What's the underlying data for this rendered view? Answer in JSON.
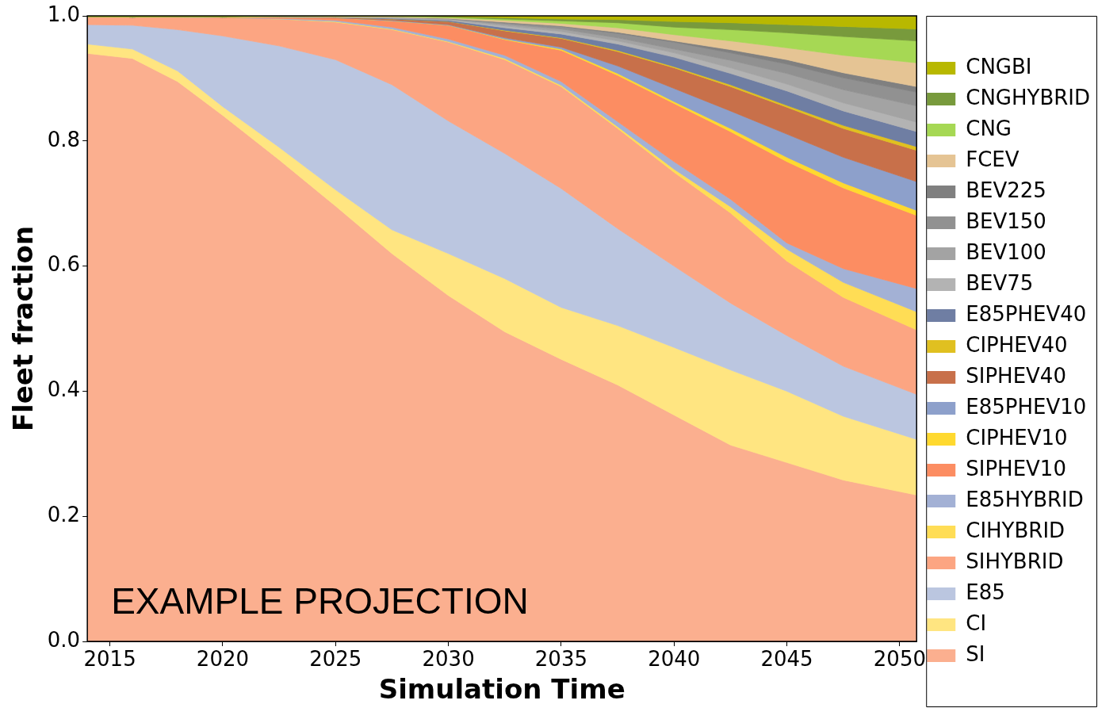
{
  "chart_data": {
    "type": "area",
    "stacked": true,
    "xlabel": "Simulation Time",
    "ylabel": "Fleet fraction",
    "legend": "right",
    "annotations": [
      "EXAMPLE PROJECTION"
    ],
    "xlim": [
      2014,
      2050.75
    ],
    "xticks": [
      2015,
      2020,
      2025,
      2030,
      2035,
      2040,
      2045,
      2050
    ],
    "ylim": [
      0,
      1
    ],
    "yticks": [
      {
        "value": 0,
        "label": "0.0"
      },
      {
        "value": 0.2,
        "label": "0.2"
      },
      {
        "value": 0.4,
        "label": "0.4"
      },
      {
        "value": 0.6,
        "label": "0.6"
      },
      {
        "value": 0.8,
        "label": "0.8"
      },
      {
        "value": 1,
        "label": "1.0"
      }
    ],
    "x": [
      2014,
      2016,
      2018,
      2020,
      2022.5,
      2025,
      2027.5,
      2030,
      2032.5,
      2035,
      2037.5,
      2040,
      2042.5,
      2045,
      2047.5,
      2050.75
    ],
    "series": [
      {
        "name": "SI",
        "color": "#fbaf8f",
        "values": [
          0.94,
          0.932,
          0.895,
          0.841,
          0.77,
          0.696,
          0.62,
          0.553,
          0.495,
          0.451,
          0.41,
          0.362,
          0.314,
          0.286,
          0.258,
          0.234
        ]
      },
      {
        "name": "CI",
        "color": "#ffe581",
        "values": [
          0.015,
          0.015,
          0.017,
          0.014,
          0.02,
          0.026,
          0.038,
          0.067,
          0.085,
          0.083,
          0.095,
          0.108,
          0.12,
          0.114,
          0.102,
          0.089
        ]
      },
      {
        "name": "E85",
        "color": "#bbc6e0",
        "values": [
          0.031,
          0.038,
          0.066,
          0.113,
          0.162,
          0.208,
          0.232,
          0.212,
          0.2,
          0.19,
          0.155,
          0.13,
          0.107,
          0.089,
          0.08,
          0.072
        ]
      },
      {
        "name": "SIHYBRID",
        "color": "#fca582",
        "values": [
          0.013,
          0.013,
          0.02,
          0.029,
          0.043,
          0.06,
          0.088,
          0.126,
          0.15,
          0.163,
          0.16,
          0.15,
          0.144,
          0.119,
          0.11,
          0.103
        ]
      },
      {
        "name": "CIHYBRID",
        "color": "#ffdd55",
        "values": [
          0,
          0,
          0,
          0,
          0,
          0.001,
          0.001,
          0.001,
          0.002,
          0.002,
          0.003,
          0.005,
          0.01,
          0.019,
          0.024,
          0.029
        ]
      },
      {
        "name": "E85HYBRID",
        "color": "#a3b1d5",
        "values": [
          0,
          0,
          0,
          0,
          0.001,
          0.002,
          0.003,
          0.004,
          0.005,
          0.006,
          0.008,
          0.012,
          0.012,
          0.01,
          0.022,
          0.037
        ]
      },
      {
        "name": "SIPHEV10",
        "color": "#fc8d62",
        "values": [
          0,
          0,
          0.001,
          0.001,
          0.002,
          0.004,
          0.01,
          0.022,
          0.025,
          0.05,
          0.074,
          0.093,
          0.108,
          0.13,
          0.129,
          0.117
        ]
      },
      {
        "name": "CIPHEV10",
        "color": "#ffd92f",
        "values": [
          0,
          0,
          0,
          0,
          0,
          0,
          0,
          0,
          0.001,
          0.002,
          0.003,
          0.003,
          0.005,
          0.007,
          0.008,
          0.008
        ]
      },
      {
        "name": "E85PHEV10",
        "color": "#8da0cb",
        "values": [
          0,
          0,
          0,
          0,
          0,
          0,
          0.001,
          0.001,
          0.002,
          0.003,
          0.012,
          0.021,
          0.028,
          0.037,
          0.041,
          0.046
        ]
      },
      {
        "name": "SIPHEV40",
        "color": "#c8704a",
        "values": [
          0,
          0,
          0,
          0,
          0.001,
          0.001,
          0.002,
          0.005,
          0.011,
          0.014,
          0.023,
          0.033,
          0.039,
          0.043,
          0.046,
          0.05
        ]
      },
      {
        "name": "CIPHEV40",
        "color": "#e0c020",
        "values": [
          0,
          0,
          0,
          0,
          0,
          0,
          0,
          0,
          0.001,
          0.001,
          0.002,
          0.002,
          0.003,
          0.003,
          0.005,
          0.006
        ]
      },
      {
        "name": "E85PHEV40",
        "color": "#6f7ea3",
        "values": [
          0,
          0,
          0,
          0,
          0,
          0,
          0.001,
          0.002,
          0.004,
          0.006,
          0.01,
          0.015,
          0.018,
          0.023,
          0.023,
          0.024
        ]
      },
      {
        "name": "BEV75",
        "color": "#b3b3b3",
        "values": [
          0,
          0,
          0,
          0,
          0,
          0,
          0.001,
          0.001,
          0.003,
          0.004,
          0.005,
          0.007,
          0.009,
          0.011,
          0.013,
          0.015
        ]
      },
      {
        "name": "BEV100",
        "color": "#a3a3a3",
        "values": [
          0,
          0,
          0,
          0,
          0,
          0,
          0.001,
          0.001,
          0.003,
          0.004,
          0.005,
          0.006,
          0.012,
          0.017,
          0.021,
          0.026
        ]
      },
      {
        "name": "BEV150",
        "color": "#919191",
        "values": [
          0,
          0,
          0,
          0,
          0,
          0,
          0,
          0.001,
          0.002,
          0.004,
          0.007,
          0.011,
          0.012,
          0.015,
          0.019,
          0.022
        ]
      },
      {
        "name": "BEV225",
        "color": "#808080",
        "values": [
          0,
          0,
          0,
          0,
          0,
          0,
          0,
          0,
          0.001,
          0.001,
          0.002,
          0.002,
          0.005,
          0.007,
          0.008,
          0.009
        ]
      },
      {
        "name": "FCEV",
        "color": "#e5c494",
        "values": [
          0,
          0,
          0,
          0,
          0,
          0.001,
          0.001,
          0.001,
          0.003,
          0.004,
          0.007,
          0.01,
          0.014,
          0.019,
          0.028,
          0.038
        ]
      },
      {
        "name": "CNG",
        "color": "#a6d854",
        "values": [
          0,
          0.001,
          0,
          0.001,
          0.001,
          0.001,
          0.001,
          0.001,
          0.002,
          0.004,
          0.008,
          0.012,
          0.018,
          0.024,
          0.03,
          0.035
        ]
      },
      {
        "name": "CNGHYBRID",
        "color": "#789a3c",
        "values": [
          0,
          0,
          0,
          0,
          0,
          0,
          0,
          0.001,
          0.002,
          0.003,
          0.005,
          0.009,
          0.011,
          0.013,
          0.016,
          0.019
        ]
      },
      {
        "name": "CNGBI",
        "color": "#b8b800",
        "values": [
          0.001,
          0.001,
          0.001,
          0.001,
          0,
          0,
          0,
          0.001,
          0.003,
          0.005,
          0.006,
          0.009,
          0.011,
          0.014,
          0.017,
          0.021
        ]
      }
    ]
  }
}
